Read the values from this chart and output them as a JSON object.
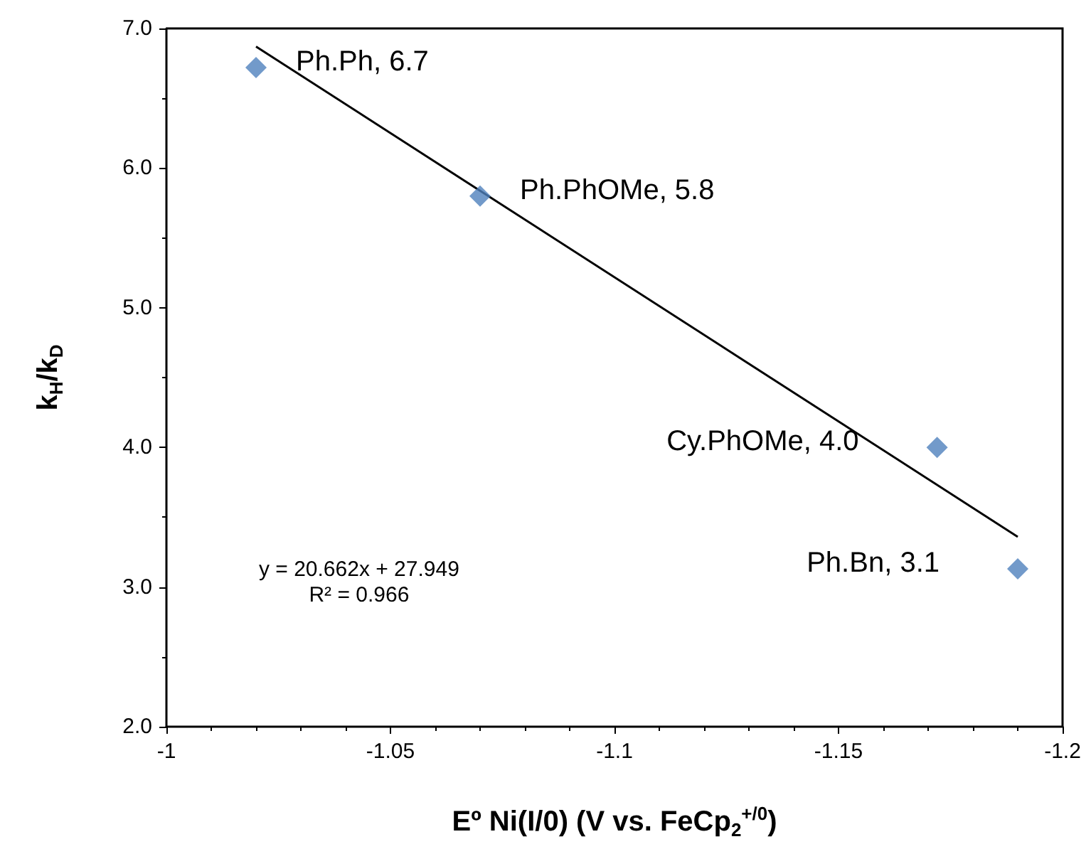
{
  "chart_data": {
    "type": "scatter",
    "xlabel": "Eº Ni(I/0) (V vs. FeCp$_{2}$$^{+/0}$)",
    "ylabel": "k$_{H}$/k$_{D}$",
    "xlim": [
      -1,
      -1.2
    ],
    "xticks": [
      -1,
      -1.05,
      -1.1,
      -1.15,
      -1.2
    ],
    "ylim": [
      2,
      7
    ],
    "yticks": [
      {
        "value": 2,
        "label": "2.0"
      },
      {
        "value": 3,
        "label": "3.0"
      },
      {
        "value": 4,
        "label": "4.0"
      },
      {
        "value": 5,
        "label": "5.0"
      },
      {
        "value": 6,
        "label": "6.0"
      },
      {
        "value": 7,
        "label": "7.0"
      }
    ],
    "x": [
      -1.02,
      -1.07,
      -1.172,
      -1.19
    ],
    "series": [
      {
        "color": "#4f81bd",
        "marker": "diamond",
        "values": [
          6.72,
          5.8,
          4.0,
          3.13
        ]
      },
      {
        "type": "line",
        "color": "#000000",
        "marker": "none",
        "x": [
          -1.02,
          -1.19
        ],
        "values": [
          6.87,
          3.36
        ]
      }
    ],
    "annotations": [
      {
        "text": "Ph.Ph, 6.7",
        "x": -1.02,
        "y": 6.72
      },
      {
        "text": "Ph.PhOMe, 5.8",
        "x": -1.07,
        "y": 5.8
      },
      {
        "text": "Cy.PhOMe, 4.0",
        "x": -1.172,
        "y": 4.0
      },
      {
        "text": "Ph.Bn, 3.1",
        "x": -1.19,
        "y": 3.13
      },
      "y = 20.662x + 27.949",
      "R² = 0.966"
    ],
    "grid": false
  }
}
